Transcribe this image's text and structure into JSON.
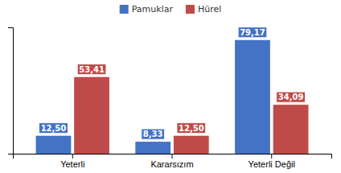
{
  "chart_data": {
    "type": "bar",
    "categories": [
      "Yeterli",
      "Kararsızım",
      "Yeterli Değil"
    ],
    "series": [
      {
        "name": "Pamuklar",
        "color": "#4472C4",
        "values": [
          12.5,
          8.33,
          79.17
        ],
        "value_labels": [
          "12,50",
          "8,33",
          "79,17"
        ]
      },
      {
        "name": "Hürel",
        "color": "#BE4B48",
        "values": [
          53.41,
          12.5,
          34.09
        ],
        "value_labels": [
          "53,41",
          "12,50",
          "34,09"
        ]
      }
    ],
    "ylim": [
      0,
      88
    ],
    "yticks": [],
    "tick_labels": "x",
    "data_labels": true,
    "legend": "top",
    "grid": false
  }
}
